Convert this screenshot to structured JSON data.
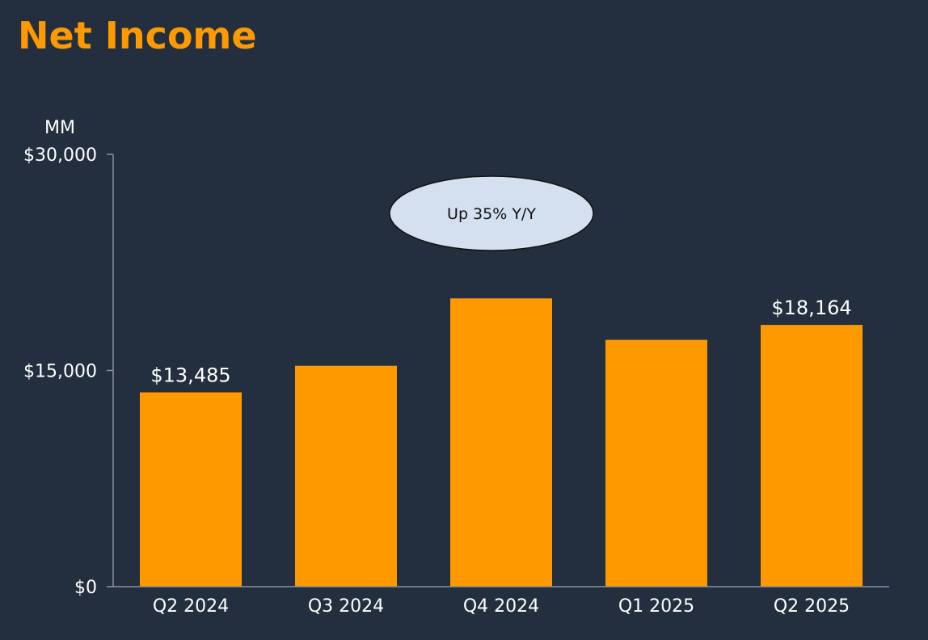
{
  "title": "Net Income",
  "chart_data": {
    "type": "bar",
    "title": "Net Income",
    "ylabel": "MM",
    "categories": [
      "Q2 2024",
      "Q3 2024",
      "Q4 2024",
      "Q1 2025",
      "Q2 2025"
    ],
    "values": [
      13485,
      15328,
      20004,
      17127,
      18164
    ],
    "data_labels": [
      "$13,485",
      "",
      "",
      "",
      "$18,164"
    ],
    "ylim": [
      0,
      30000
    ],
    "y_ticks": [
      0,
      15000,
      30000
    ],
    "y_tick_labels": [
      "$0",
      "$15,000",
      "$30,000"
    ],
    "grid": false,
    "legend": "none",
    "annotation": "Up 35% Y/Y",
    "colors": {
      "background": "#232f3e",
      "bar": "#ff9900",
      "title": "#ff9900",
      "axis": "#8a929c",
      "callout_fill": "#d4dff0",
      "callout_stroke": "#111111"
    }
  }
}
